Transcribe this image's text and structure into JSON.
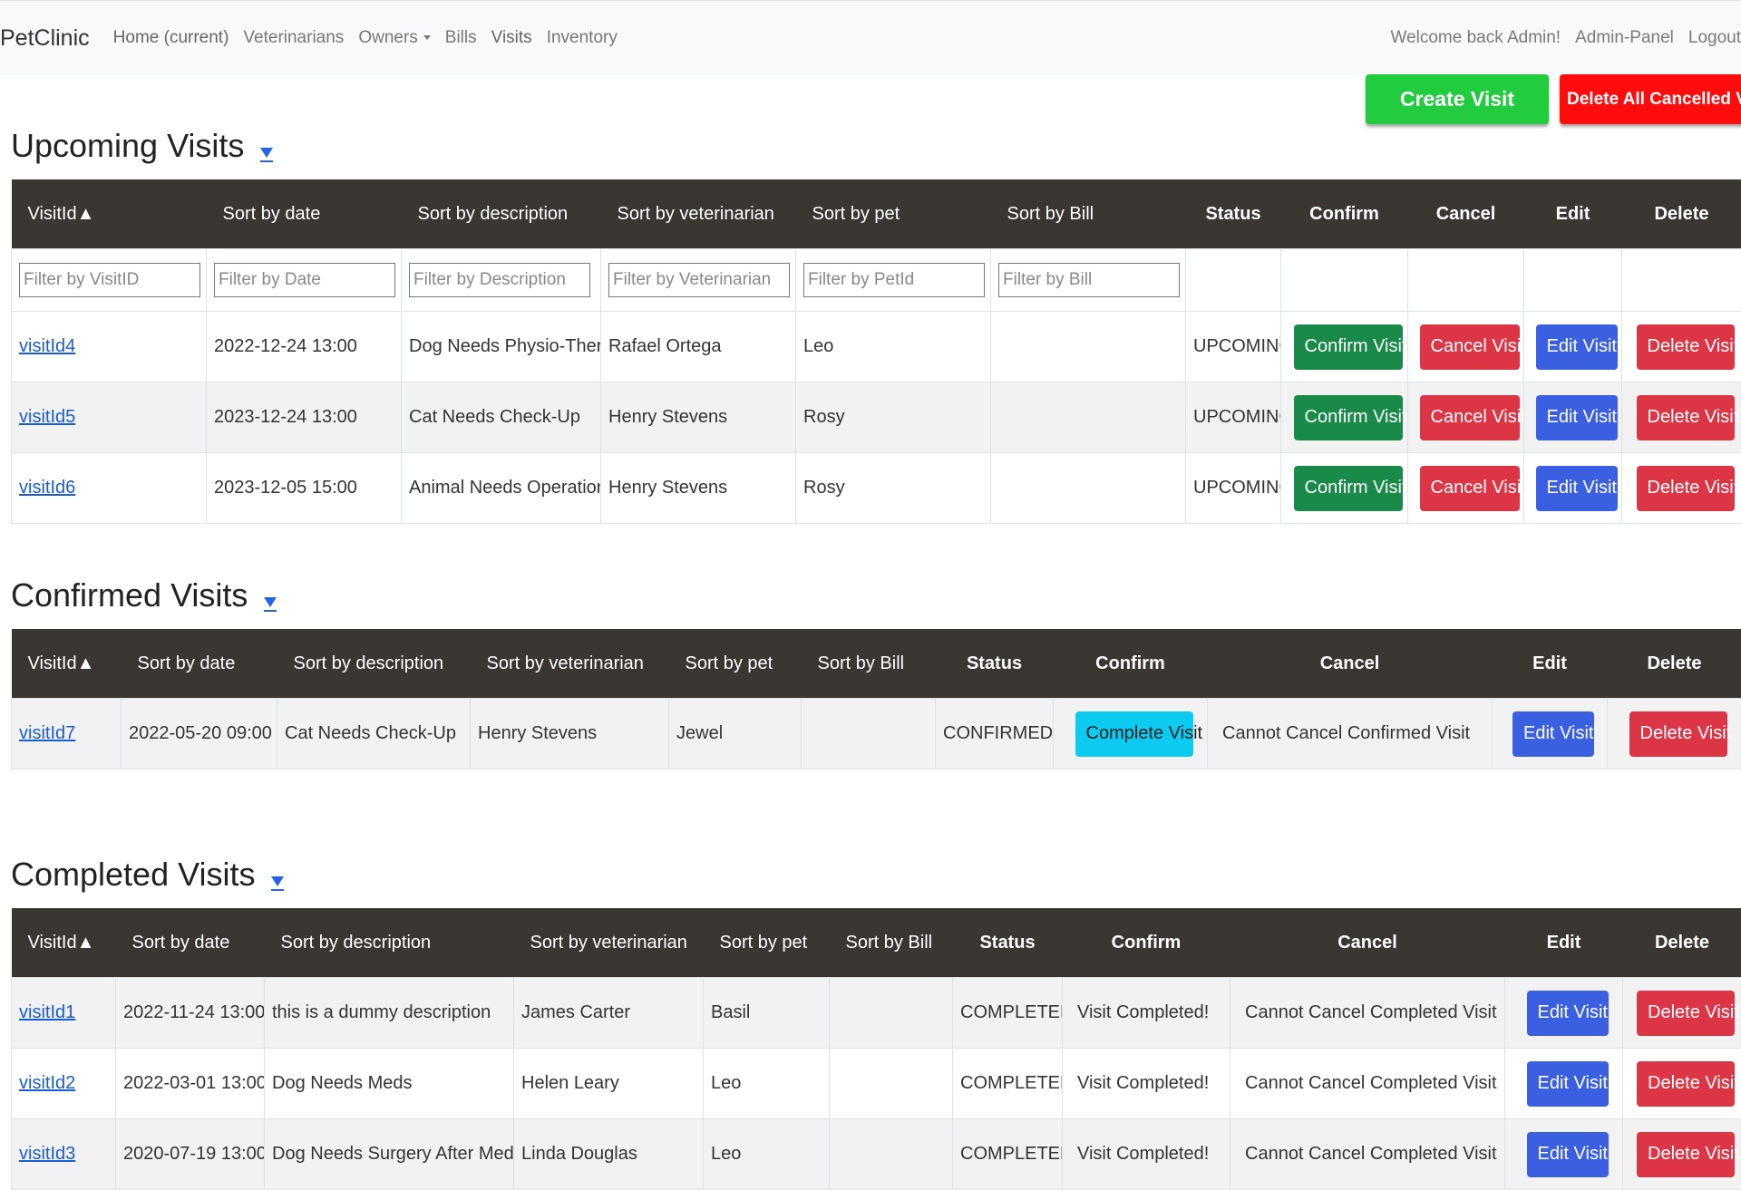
{
  "navbar": {
    "brand": "PetClinic",
    "links": [
      "Home (current)",
      "Veterinarians",
      "Owners",
      "Bills",
      "Visits",
      "Inventory"
    ],
    "right": [
      "Welcome back Admin!",
      "Admin-Panel",
      "Logout"
    ]
  },
  "actions": {
    "create_visit": "Create Visit",
    "delete_all_cancelled": "Delete All Cancelled Visits"
  },
  "upcoming": {
    "title": "Upcoming Visits",
    "headers": [
      "VisitId▲",
      "Sort by date",
      "Sort by description",
      "Sort by veterinarian",
      "Sort by pet",
      "Sort by Bill",
      "Status",
      "Confirm",
      "Cancel",
      "Edit",
      "Delete"
    ],
    "filters": [
      "Filter by VisitID",
      "Filter by Date",
      "Filter by Description",
      "Filter by Veterinarian",
      "Filter by PetId",
      "Filter by Bill"
    ],
    "rows": [
      {
        "id": "visitId4",
        "date": "2022-12-24 13:00",
        "description": "Dog Needs Physio-Therapy",
        "vet": "Rafael Ortega",
        "pet": "Leo",
        "bill": "",
        "status": "UPCOMING",
        "confirm": "Confirm Visit",
        "cancel": "Cancel Visit",
        "edit": "Edit Visit",
        "delete": "Delete Visit"
      },
      {
        "id": "visitId5",
        "date": "2023-12-24 13:00",
        "description": "Cat Needs Check-Up",
        "vet": "Henry Stevens",
        "pet": "Rosy",
        "bill": "",
        "status": "UPCOMING",
        "confirm": "Confirm Visit",
        "cancel": "Cancel Visit",
        "edit": "Edit Visit",
        "delete": "Delete Visit"
      },
      {
        "id": "visitId6",
        "date": "2023-12-05 15:00",
        "description": "Animal Needs Operation",
        "vet": "Henry Stevens",
        "pet": "Rosy",
        "bill": "",
        "status": "UPCOMING",
        "confirm": "Confirm Visit",
        "cancel": "Cancel Visit",
        "edit": "Edit Visit",
        "delete": "Delete Visit"
      }
    ]
  },
  "confirmed": {
    "title": "Confirmed Visits",
    "headers": [
      "VisitId▲",
      "Sort by date",
      "Sort by description",
      "Sort by veterinarian",
      "Sort by pet",
      "Sort by Bill",
      "Status",
      "Confirm",
      "Cancel",
      "Edit",
      "Delete"
    ],
    "rows": [
      {
        "id": "visitId7",
        "date": "2022-05-20 09:00",
        "description": "Cat Needs Check-Up",
        "vet": "Henry Stevens",
        "pet": "Jewel",
        "bill": "",
        "status": "CONFIRMED",
        "confirm": "Complete Visit",
        "cancel": "Cannot Cancel Confirmed Visit",
        "edit": "Edit Visit",
        "delete": "Delete Visit"
      }
    ]
  },
  "completed": {
    "title": "Completed Visits",
    "headers": [
      "VisitId▲",
      "Sort by date",
      "Sort by description",
      "Sort by veterinarian",
      "Sort by pet",
      "Sort by Bill",
      "Status",
      "Confirm",
      "Cancel",
      "Edit",
      "Delete"
    ],
    "rows": [
      {
        "id": "visitId1",
        "date": "2022-11-24 13:00",
        "description": "this is a dummy description",
        "vet": "James Carter",
        "pet": "Basil",
        "bill": "",
        "status": "COMPLETED",
        "confirm": "Visit Completed!",
        "cancel": "Cannot Cancel Completed Visit",
        "edit": "Edit Visit",
        "delete": "Delete Visit"
      },
      {
        "id": "visitId2",
        "date": "2022-03-01 13:00",
        "description": "Dog Needs Meds",
        "vet": "Helen Leary",
        "pet": "Leo",
        "bill": "",
        "status": "COMPLETED",
        "confirm": "Visit Completed!",
        "cancel": "Cannot Cancel Completed Visit",
        "edit": "Edit Visit",
        "delete": "Delete Visit"
      },
      {
        "id": "visitId3",
        "date": "2020-07-19 13:00",
        "description": "Dog Needs Surgery After Meds",
        "vet": "Linda Douglas",
        "pet": "Leo",
        "bill": "",
        "status": "COMPLETED",
        "confirm": "Visit Completed!",
        "cancel": "Cannot Cancel Completed Visit",
        "edit": "Edit Visit",
        "delete": "Delete Visit"
      }
    ]
  }
}
